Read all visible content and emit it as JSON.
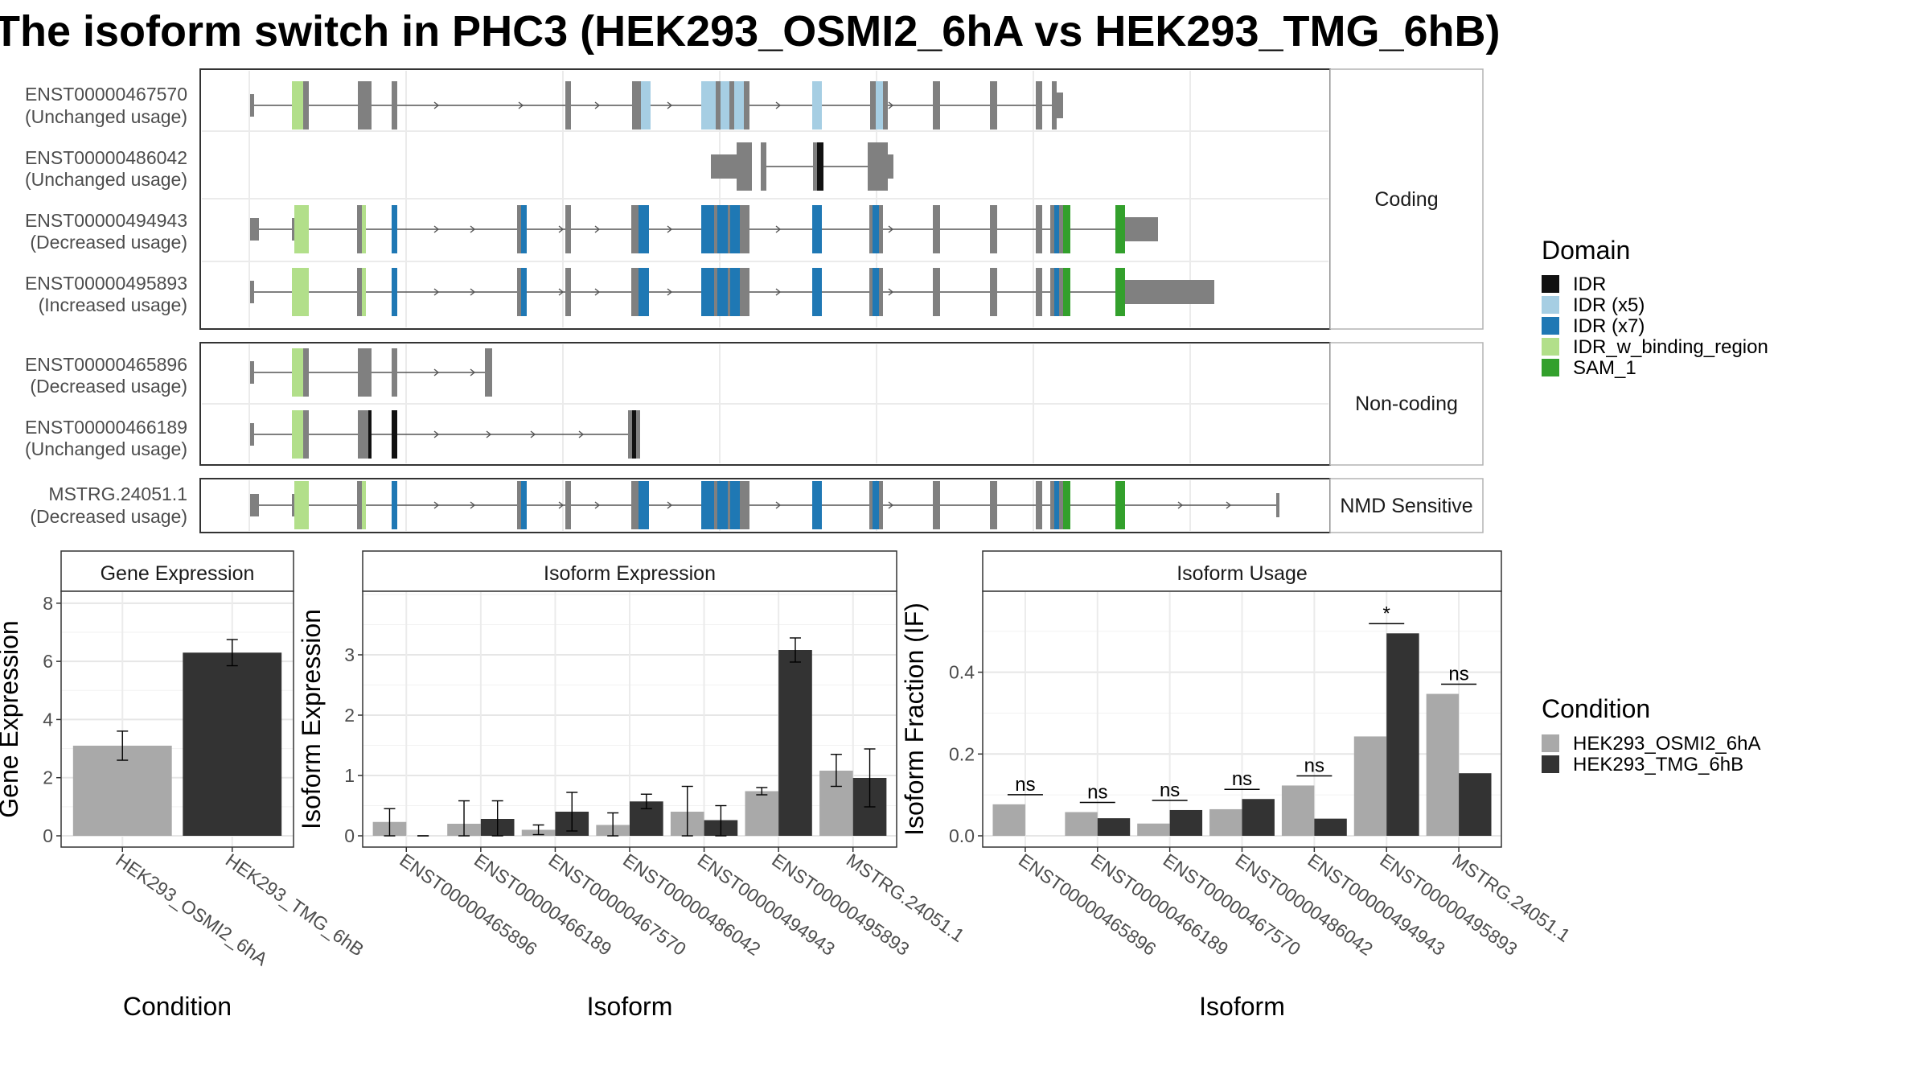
{
  "title": "The isoform switch in PHC3 (HEK293_OSMI2_6hA vs HEK293_TMG_6hB)",
  "colors": {
    "exon": "#808080",
    "cond_A": "#a9a9a9",
    "cond_B": "#333333",
    "IDR": "#111111",
    "IDR_x5": "#a6cee3",
    "IDR_x7": "#1f78b4",
    "IDR_w_binding_region": "#b2df8a",
    "SAM_1": "#33a02c"
  },
  "transcript_panel": {
    "groups": [
      {
        "label": "Coding",
        "transcripts": [
          {
            "id": "ENST00000467570",
            "usage": "(Unchanged usage)"
          },
          {
            "id": "ENST00000486042",
            "usage": "(Unchanged usage)"
          },
          {
            "id": "ENST00000494943",
            "usage": "(Decreased usage)"
          },
          {
            "id": "ENST00000495893",
            "usage": "(Increased usage)"
          }
        ]
      },
      {
        "label": "Non-coding",
        "transcripts": [
          {
            "id": "ENST00000465896",
            "usage": "(Decreased usage)"
          },
          {
            "id": "ENST00000466189",
            "usage": "(Unchanged usage)"
          }
        ]
      },
      {
        "label": "NMD Sensitive",
        "transcripts": [
          {
            "id": "MSTRG.24051.1",
            "usage": "(Decreased usage)"
          }
        ]
      }
    ]
  },
  "legends": {
    "domain": {
      "title": "Domain",
      "items": [
        {
          "label": "IDR",
          "color": "#111111"
        },
        {
          "label": "IDR (x5)",
          "color": "#a6cee3"
        },
        {
          "label": "IDR (x7)",
          "color": "#1f78b4"
        },
        {
          "label": "IDR_w_binding_region",
          "color": "#b2df8a"
        },
        {
          "label": "SAM_1",
          "color": "#33a02c"
        }
      ]
    },
    "condition": {
      "title": "Condition",
      "items": [
        {
          "label": "HEK293_OSMI2_6hA",
          "color": "#a9a9a9"
        },
        {
          "label": "HEK293_TMG_6hB",
          "color": "#333333"
        }
      ]
    }
  },
  "chart_data": [
    {
      "type": "bar",
      "title": "Gene Expression",
      "xlabel": "Condition",
      "ylabel": "Gene Expression",
      "ylim": [
        0,
        8.3
      ],
      "yticks": [
        0,
        2,
        4,
        6,
        8
      ],
      "categories": [
        "HEK293_OSMI2_6hA",
        "HEK293_TMG_6hB"
      ],
      "values": [
        3.1,
        6.3
      ],
      "errors": [
        [
          2.6,
          3.6
        ],
        [
          5.85,
          6.75
        ]
      ]
    },
    {
      "type": "bar",
      "title": "Isoform Expression",
      "xlabel": "Isoform",
      "ylabel": "Isoform Expression",
      "ylim": [
        0,
        4.0
      ],
      "yticks": [
        0,
        1,
        2,
        3
      ],
      "categories": [
        "ENST00000465896",
        "ENST00000466189",
        "ENST00000467570",
        "ENST00000486042",
        "ENST00000494943",
        "ENST00000495893",
        "MSTRG.24051.1"
      ],
      "series": [
        {
          "name": "HEK293_OSMI2_6hA",
          "values": [
            0.23,
            0.2,
            0.1,
            0.18,
            0.4,
            0.74,
            1.08
          ],
          "errors": [
            [
              0.0,
              0.45
            ],
            [
              0.0,
              0.58
            ],
            [
              0.02,
              0.18
            ],
            [
              0.0,
              0.38
            ],
            [
              0.0,
              0.82
            ],
            [
              0.68,
              0.8
            ],
            [
              0.82,
              1.35
            ]
          ]
        },
        {
          "name": "HEK293_TMG_6hB",
          "values": [
            0.0,
            0.28,
            0.4,
            0.57,
            0.26,
            3.08,
            0.96
          ],
          "errors": [
            [
              0.0,
              0.0
            ],
            [
              0.0,
              0.58
            ],
            [
              0.08,
              0.72
            ],
            [
              0.45,
              0.69
            ],
            [
              0.0,
              0.5
            ],
            [
              2.88,
              3.28
            ],
            [
              0.48,
              1.44
            ]
          ]
        }
      ]
    },
    {
      "type": "bar",
      "title": "Isoform Usage",
      "xlabel": "Isoform",
      "ylabel": "Isoform Fraction (IF)",
      "ylim": [
        0,
        0.59
      ],
      "yticks": [
        0.0,
        0.2,
        0.4
      ],
      "categories": [
        "ENST00000465896",
        "ENST00000466189",
        "ENST00000467570",
        "ENST00000486042",
        "ENST00000494943",
        "ENST00000495893",
        "MSTRG.24051.1"
      ],
      "series": [
        {
          "name": "HEK293_OSMI2_6hA",
          "values": [
            0.077,
            0.058,
            0.03,
            0.065,
            0.123,
            0.243,
            0.347
          ]
        },
        {
          "name": "HEK293_TMG_6hB",
          "values": [
            0.0,
            0.043,
            0.063,
            0.09,
            0.042,
            0.495,
            0.153
          ]
        }
      ],
      "significance": [
        "ns",
        "ns",
        "ns",
        "ns",
        "ns",
        "*",
        "ns"
      ]
    }
  ]
}
